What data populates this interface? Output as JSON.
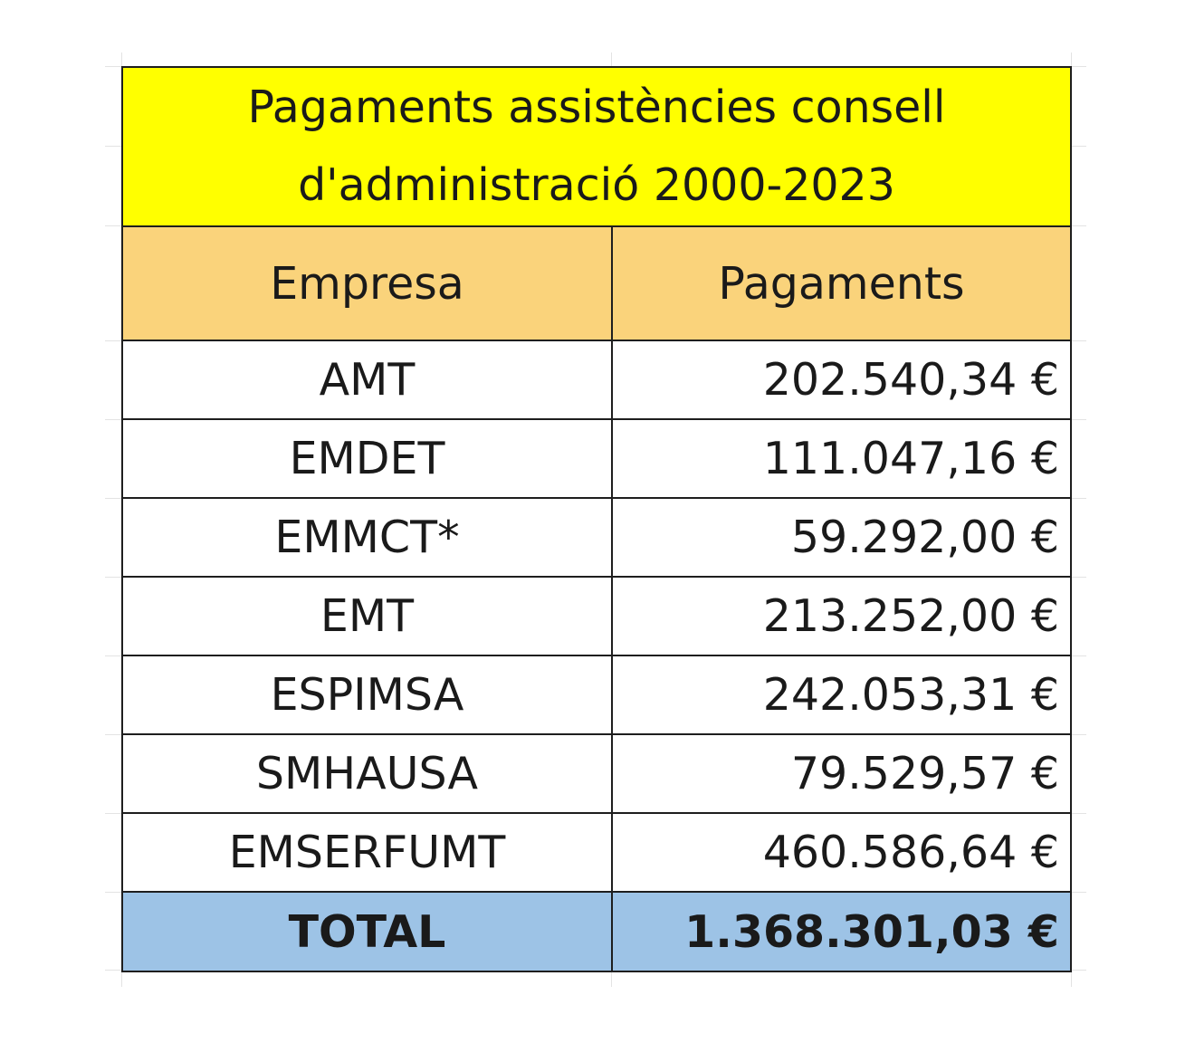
{
  "table": {
    "title_line1": "Pagaments assistències consell",
    "title_line2": "d'administració 2000-2023",
    "headers": {
      "company": "Empresa",
      "payments": "Pagaments"
    },
    "rows": [
      {
        "company": "AMT",
        "amount": "202.540,34 €"
      },
      {
        "company": "EMDET",
        "amount": "111.047,16 €"
      },
      {
        "company": "EMMCT*",
        "amount": "59.292,00 €"
      },
      {
        "company": "EMT",
        "amount": "213.252,00 €"
      },
      {
        "company": "ESPIMSA",
        "amount": "242.053,31 €"
      },
      {
        "company": "SMHAUSA",
        "amount": "79.529,57 €"
      },
      {
        "company": "EMSERFUMT",
        "amount": "460.586,64 €"
      }
    ],
    "total": {
      "label": "TOTAL",
      "amount": "1.368.301,03 €"
    }
  },
  "colors": {
    "title_bg": "#ffff00",
    "header_bg": "#fad37b",
    "total_bg": "#9dc3e6"
  }
}
